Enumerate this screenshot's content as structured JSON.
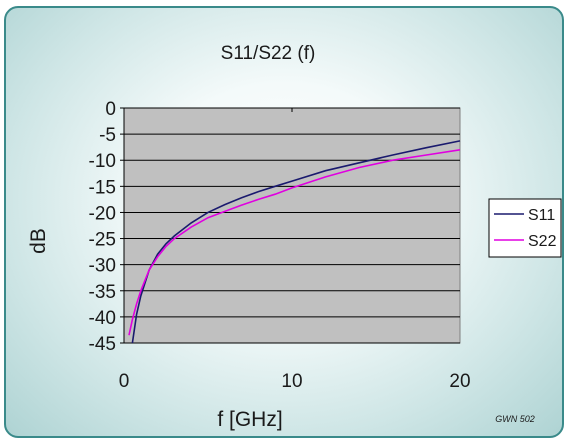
{
  "chart_data": {
    "type": "line",
    "title": "S11/S22 (f)",
    "xlabel": "f [GHz]",
    "ylabel": "dB",
    "xlim": [
      0,
      20
    ],
    "ylim": [
      -45,
      0
    ],
    "x_ticks": [
      "0",
      "10",
      "20"
    ],
    "y_ticks": [
      "0",
      "-5",
      "-10",
      "-15",
      "-20",
      "-25",
      "-30",
      "-35",
      "-40",
      "-45"
    ],
    "grid": "horizontal",
    "legend_position": "right",
    "plot_background": "#c0c0c0",
    "series": [
      {
        "name": "S11",
        "color": "#1a1a6e",
        "x": [
          0.5,
          0.75,
          1,
          1.5,
          2,
          2.5,
          3,
          4,
          5,
          6,
          7,
          8,
          9,
          10,
          12,
          14,
          16,
          18,
          20
        ],
        "y": [
          -45,
          -39.5,
          -36,
          -31,
          -28,
          -26,
          -24.5,
          -22,
          -20,
          -18.5,
          -17.2,
          -16,
          -15,
          -14,
          -12,
          -10.5,
          -9,
          -7.6,
          -6.3
        ]
      },
      {
        "name": "S22",
        "color": "#e000e0",
        "x": [
          0.3,
          0.5,
          0.75,
          1,
          1.5,
          2,
          2.5,
          3,
          4,
          5,
          6,
          7,
          8,
          9,
          10,
          12,
          14,
          16,
          18,
          20
        ],
        "y": [
          -43.5,
          -40.5,
          -37.5,
          -35,
          -31,
          -28.5,
          -26.5,
          -25,
          -22.8,
          -21,
          -19.8,
          -18.6,
          -17.5,
          -16.5,
          -15.3,
          -13.2,
          -11.4,
          -10,
          -9,
          -8
        ]
      }
    ]
  },
  "watermark": "GWN 502"
}
